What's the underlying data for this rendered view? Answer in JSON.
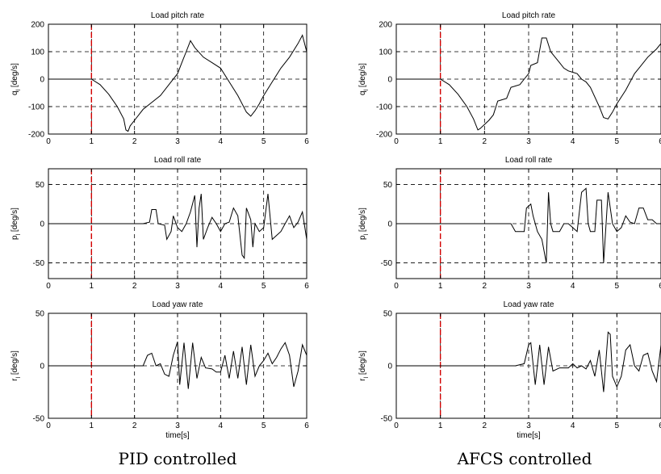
{
  "captions": {
    "left": "PID controlled",
    "right": "AFCS controlled"
  },
  "colors": {
    "trace": "#000000",
    "marker": "#d40000",
    "grid": "#000000",
    "axes": "#000000"
  },
  "chart_data": [
    {
      "type": "line",
      "column": "PID controlled",
      "title": "Load pitch rate",
      "ylabel": {
        "main": "q",
        "sub": "l",
        "unit": "[deg/s]"
      },
      "xlabel": "",
      "xlim": [
        0,
        6
      ],
      "ylim": [
        -200,
        200
      ],
      "xticks": [
        0,
        1,
        2,
        3,
        4,
        5,
        6
      ],
      "yticks": [
        -200,
        -100,
        0,
        100,
        200
      ],
      "grid": true,
      "marker_x": 1,
      "series": [
        {
          "values": [
            [
              0,
              0
            ],
            [
              1,
              0
            ],
            [
              1.2,
              -20
            ],
            [
              1.4,
              -55
            ],
            [
              1.6,
              -100
            ],
            [
              1.75,
              -145
            ],
            [
              1.8,
              -185
            ],
            [
              1.85,
              -190
            ],
            [
              1.9,
              -170
            ],
            [
              2.0,
              -150
            ],
            [
              2.2,
              -110
            ],
            [
              2.4,
              -85
            ],
            [
              2.6,
              -60
            ],
            [
              2.8,
              -20
            ],
            [
              3.0,
              20
            ],
            [
              3.1,
              60
            ],
            [
              3.2,
              100
            ],
            [
              3.3,
              140
            ],
            [
              3.4,
              115
            ],
            [
              3.6,
              80
            ],
            [
              3.8,
              60
            ],
            [
              4.0,
              40
            ],
            [
              4.2,
              -10
            ],
            [
              4.4,
              -60
            ],
            [
              4.6,
              -120
            ],
            [
              4.7,
              -135
            ],
            [
              4.8,
              -115
            ],
            [
              4.9,
              -90
            ],
            [
              5.0,
              -60
            ],
            [
              5.2,
              -10
            ],
            [
              5.4,
              40
            ],
            [
              5.6,
              80
            ],
            [
              5.8,
              130
            ],
            [
              5.9,
              160
            ],
            [
              6.0,
              100
            ]
          ]
        }
      ]
    },
    {
      "type": "line",
      "column": "PID controlled",
      "title": "Load roll rate",
      "ylabel": {
        "main": "p",
        "sub": "l",
        "unit": "[deg/s]"
      },
      "xlabel": "",
      "xlim": [
        0,
        6
      ],
      "ylim": [
        -70,
        70
      ],
      "xticks": [
        0,
        1,
        2,
        3,
        4,
        5,
        6
      ],
      "yticks": [
        -50,
        0,
        50
      ],
      "grid": true,
      "marker_x": 1,
      "series": [
        {
          "values": [
            [
              0,
              0
            ],
            [
              2.2,
              0
            ],
            [
              2.35,
              2
            ],
            [
              2.4,
              18
            ],
            [
              2.5,
              18
            ],
            [
              2.55,
              0
            ],
            [
              2.7,
              -2
            ],
            [
              2.75,
              -20
            ],
            [
              2.85,
              -10
            ],
            [
              2.9,
              10
            ],
            [
              3.0,
              -5
            ],
            [
              3.1,
              -10
            ],
            [
              3.2,
              0
            ],
            [
              3.3,
              15
            ],
            [
              3.4,
              36
            ],
            [
              3.45,
              -30
            ],
            [
              3.5,
              20
            ],
            [
              3.55,
              38
            ],
            [
              3.6,
              -20
            ],
            [
              3.7,
              -5
            ],
            [
              3.8,
              8
            ],
            [
              3.9,
              0
            ],
            [
              4.0,
              -10
            ],
            [
              4.1,
              0
            ],
            [
              4.2,
              2
            ],
            [
              4.3,
              20
            ],
            [
              4.4,
              10
            ],
            [
              4.5,
              -40
            ],
            [
              4.55,
              -44
            ],
            [
              4.6,
              20
            ],
            [
              4.7,
              5
            ],
            [
              4.75,
              -30
            ],
            [
              4.8,
              0
            ],
            [
              4.9,
              -10
            ],
            [
              5.0,
              -5
            ],
            [
              5.1,
              38
            ],
            [
              5.2,
              -20
            ],
            [
              5.4,
              -10
            ],
            [
              5.5,
              0
            ],
            [
              5.6,
              10
            ],
            [
              5.7,
              -5
            ],
            [
              5.8,
              2
            ],
            [
              5.9,
              15
            ],
            [
              6.0,
              -20
            ]
          ]
        }
      ]
    },
    {
      "type": "line",
      "column": "PID controlled",
      "title": "Load yaw rate",
      "ylabel": {
        "main": "r",
        "sub": "l",
        "unit": "[deg/s]"
      },
      "xlabel": "time[s]",
      "xlim": [
        0,
        6
      ],
      "ylim": [
        -50,
        50
      ],
      "xticks": [
        0,
        1,
        2,
        3,
        4,
        5,
        6
      ],
      "yticks": [
        -50,
        0,
        50
      ],
      "grid": true,
      "marker_x": 1,
      "series": [
        {
          "values": [
            [
              0,
              0
            ],
            [
              2.2,
              0
            ],
            [
              2.3,
              10
            ],
            [
              2.4,
              12
            ],
            [
              2.5,
              0
            ],
            [
              2.6,
              2
            ],
            [
              2.7,
              -8
            ],
            [
              2.8,
              -10
            ],
            [
              2.9,
              10
            ],
            [
              3.0,
              23
            ],
            [
              3.05,
              -18
            ],
            [
              3.15,
              22
            ],
            [
              3.25,
              -22
            ],
            [
              3.35,
              22
            ],
            [
              3.45,
              -12
            ],
            [
              3.55,
              8
            ],
            [
              3.65,
              -2
            ],
            [
              3.8,
              -3
            ],
            [
              3.9,
              -6
            ],
            [
              4.0,
              -6
            ],
            [
              4.1,
              10
            ],
            [
              4.2,
              -12
            ],
            [
              4.3,
              14
            ],
            [
              4.4,
              -12
            ],
            [
              4.5,
              18
            ],
            [
              4.6,
              -18
            ],
            [
              4.7,
              20
            ],
            [
              4.8,
              -10
            ],
            [
              4.9,
              0
            ],
            [
              5.0,
              5
            ],
            [
              5.1,
              12
            ],
            [
              5.2,
              2
            ],
            [
              5.3,
              8
            ],
            [
              5.4,
              16
            ],
            [
              5.5,
              22
            ],
            [
              5.6,
              10
            ],
            [
              5.7,
              -20
            ],
            [
              5.8,
              -5
            ],
            [
              5.9,
              20
            ],
            [
              6.0,
              10
            ]
          ]
        }
      ]
    },
    {
      "type": "line",
      "column": "AFCS controlled",
      "title": "Load pitch rate",
      "ylabel": {
        "main": "q",
        "sub": "l",
        "unit": "[deg/s]"
      },
      "xlabel": "",
      "xlim": [
        0,
        6
      ],
      "ylim": [
        -200,
        200
      ],
      "xticks": [
        0,
        1,
        2,
        3,
        4,
        5,
        6
      ],
      "yticks": [
        -200,
        -100,
        0,
        100,
        200
      ],
      "grid": true,
      "marker_x": 1,
      "series": [
        {
          "values": [
            [
              0,
              0
            ],
            [
              1,
              0
            ],
            [
              1.2,
              -20
            ],
            [
              1.4,
              -55
            ],
            [
              1.6,
              -100
            ],
            [
              1.75,
              -145
            ],
            [
              1.85,
              -185
            ],
            [
              1.9,
              -180
            ],
            [
              2.1,
              -150
            ],
            [
              2.2,
              -130
            ],
            [
              2.3,
              -80
            ],
            [
              2.4,
              -75
            ],
            [
              2.5,
              -70
            ],
            [
              2.6,
              -30
            ],
            [
              2.7,
              -25
            ],
            [
              2.8,
              -20
            ],
            [
              2.9,
              0
            ],
            [
              3.0,
              20
            ],
            [
              3.05,
              50
            ],
            [
              3.2,
              60
            ],
            [
              3.3,
              150
            ],
            [
              3.4,
              150
            ],
            [
              3.5,
              100
            ],
            [
              3.6,
              80
            ],
            [
              3.7,
              60
            ],
            [
              3.8,
              40
            ],
            [
              3.9,
              30
            ],
            [
              4.0,
              25
            ],
            [
              4.1,
              20
            ],
            [
              4.2,
              0
            ],
            [
              4.3,
              -10
            ],
            [
              4.4,
              -30
            ],
            [
              4.6,
              -100
            ],
            [
              4.7,
              -140
            ],
            [
              4.8,
              -145
            ],
            [
              4.9,
              -120
            ],
            [
              5.0,
              -90
            ],
            [
              5.2,
              -40
            ],
            [
              5.4,
              20
            ],
            [
              5.5,
              40
            ],
            [
              5.7,
              80
            ],
            [
              5.9,
              110
            ],
            [
              6.0,
              130
            ]
          ]
        }
      ]
    },
    {
      "type": "line",
      "column": "AFCS controlled",
      "title": "Load roll rate",
      "ylabel": {
        "main": "p",
        "sub": "l",
        "unit": "[deg/s]"
      },
      "xlabel": "",
      "xlim": [
        0,
        6
      ],
      "ylim": [
        -70,
        70
      ],
      "xticks": [
        0,
        1,
        2,
        3,
        4,
        5,
        6
      ],
      "yticks": [
        -50,
        0,
        50
      ],
      "grid": true,
      "marker_x": 1,
      "series": [
        {
          "values": [
            [
              0,
              0
            ],
            [
              2.6,
              0
            ],
            [
              2.7,
              -10
            ],
            [
              2.9,
              -10
            ],
            [
              2.95,
              20
            ],
            [
              3.05,
              25
            ],
            [
              3.1,
              10
            ],
            [
              3.2,
              -10
            ],
            [
              3.3,
              -20
            ],
            [
              3.4,
              -50
            ],
            [
              3.45,
              40
            ],
            [
              3.5,
              0
            ],
            [
              3.55,
              -10
            ],
            [
              3.7,
              -10
            ],
            [
              3.8,
              0
            ],
            [
              3.9,
              0
            ],
            [
              4.0,
              -5
            ],
            [
              4.1,
              -10
            ],
            [
              4.2,
              40
            ],
            [
              4.3,
              45
            ],
            [
              4.35,
              0
            ],
            [
              4.4,
              -10
            ],
            [
              4.5,
              -10
            ],
            [
              4.55,
              30
            ],
            [
              4.65,
              30
            ],
            [
              4.7,
              -50
            ],
            [
              4.8,
              40
            ],
            [
              4.9,
              0
            ],
            [
              5.0,
              -10
            ],
            [
              5.1,
              -5
            ],
            [
              5.2,
              10
            ],
            [
              5.3,
              2
            ],
            [
              5.4,
              0
            ],
            [
              5.5,
              20
            ],
            [
              5.6,
              20
            ],
            [
              5.7,
              5
            ],
            [
              5.8,
              5
            ],
            [
              5.9,
              0
            ],
            [
              6.0,
              0
            ]
          ]
        }
      ]
    },
    {
      "type": "line",
      "column": "AFCS controlled",
      "title": "Load yaw rate",
      "ylabel": {
        "main": "r",
        "sub": "l",
        "unit": "[deg/s]"
      },
      "xlabel": "time[s]",
      "xlim": [
        0,
        6
      ],
      "ylim": [
        -50,
        50
      ],
      "xticks": [
        0,
        1,
        2,
        3,
        4,
        5,
        6
      ],
      "yticks": [
        -50,
        0,
        50
      ],
      "grid": true,
      "marker_x": 1,
      "series": [
        {
          "values": [
            [
              0,
              0
            ],
            [
              2.7,
              0
            ],
            [
              2.9,
              2
            ],
            [
              3.0,
              20
            ],
            [
              3.05,
              22
            ],
            [
              3.15,
              -18
            ],
            [
              3.25,
              20
            ],
            [
              3.35,
              -18
            ],
            [
              3.45,
              18
            ],
            [
              3.55,
              -5
            ],
            [
              3.7,
              -2
            ],
            [
              3.9,
              -2
            ],
            [
              4.0,
              2
            ],
            [
              4.1,
              -2
            ],
            [
              4.2,
              0
            ],
            [
              4.3,
              -3
            ],
            [
              4.4,
              5
            ],
            [
              4.5,
              -10
            ],
            [
              4.6,
              15
            ],
            [
              4.7,
              -25
            ],
            [
              4.8,
              32
            ],
            [
              4.85,
              30
            ],
            [
              4.9,
              -10
            ],
            [
              5.0,
              -20
            ],
            [
              5.1,
              -10
            ],
            [
              5.2,
              15
            ],
            [
              5.3,
              20
            ],
            [
              5.4,
              0
            ],
            [
              5.5,
              -5
            ],
            [
              5.6,
              10
            ],
            [
              5.7,
              12
            ],
            [
              5.8,
              -5
            ],
            [
              5.9,
              -15
            ],
            [
              6.0,
              20
            ]
          ]
        }
      ]
    }
  ]
}
